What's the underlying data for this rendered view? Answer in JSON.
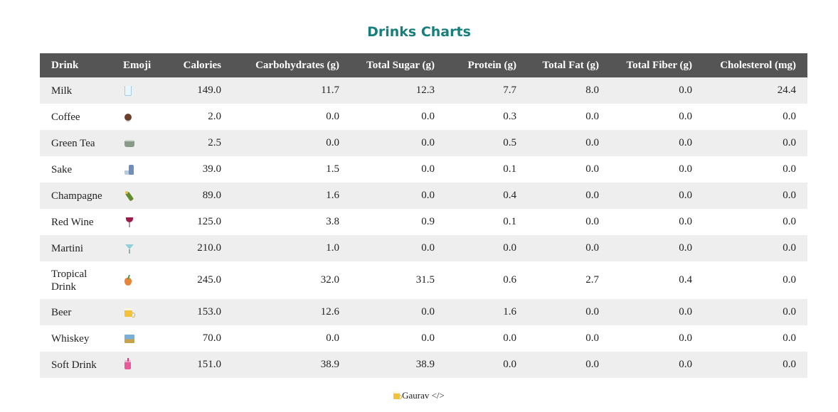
{
  "page": {
    "title": "Drinks Charts"
  },
  "table": {
    "headers": {
      "drink": "Drink",
      "emoji": "Emoji",
      "calories": "Calories",
      "carbohydrates": "Carbohydrates (g)",
      "total_sugar": "Total Sugar (g)",
      "protein": "Protein (g)",
      "total_fat": "Total Fat (g)",
      "total_fiber": "Total Fiber (g)",
      "cholesterol": "Cholesterol (mg)"
    },
    "rows": [
      {
        "drink": "Milk",
        "icon": "milk-icon",
        "calories": "149.0",
        "carbohydrates": "11.7",
        "total_sugar": "12.3",
        "protein": "7.7",
        "total_fat": "8.0",
        "total_fiber": "0.0",
        "cholesterol": "24.4"
      },
      {
        "drink": "Coffee",
        "icon": "coffee-icon",
        "calories": "2.0",
        "carbohydrates": "0.0",
        "total_sugar": "0.0",
        "protein": "0.3",
        "total_fat": "0.0",
        "total_fiber": "0.0",
        "cholesterol": "0.0"
      },
      {
        "drink": "Green Tea",
        "icon": "green-tea-icon",
        "calories": "2.5",
        "carbohydrates": "0.0",
        "total_sugar": "0.0",
        "protein": "0.5",
        "total_fat": "0.0",
        "total_fiber": "0.0",
        "cholesterol": "0.0"
      },
      {
        "drink": "Sake",
        "icon": "sake-icon",
        "calories": "39.0",
        "carbohydrates": "1.5",
        "total_sugar": "0.0",
        "protein": "0.1",
        "total_fat": "0.0",
        "total_fiber": "0.0",
        "cholesterol": "0.0"
      },
      {
        "drink": "Champagne",
        "icon": "champagne-icon",
        "calories": "89.0",
        "carbohydrates": "1.6",
        "total_sugar": "0.0",
        "protein": "0.4",
        "total_fat": "0.0",
        "total_fiber": "0.0",
        "cholesterol": "0.0"
      },
      {
        "drink": "Red Wine",
        "icon": "wine-glass-icon",
        "calories": "125.0",
        "carbohydrates": "3.8",
        "total_sugar": "0.9",
        "protein": "0.1",
        "total_fat": "0.0",
        "total_fiber": "0.0",
        "cholesterol": "0.0"
      },
      {
        "drink": "Martini",
        "icon": "cocktail-glass-icon",
        "calories": "210.0",
        "carbohydrates": "1.0",
        "total_sugar": "0.0",
        "protein": "0.0",
        "total_fat": "0.0",
        "total_fiber": "0.0",
        "cholesterol": "0.0"
      },
      {
        "drink": "Tropical Drink",
        "icon": "tropical-drink-icon",
        "calories": "245.0",
        "carbohydrates": "32.0",
        "total_sugar": "31.5",
        "protein": "0.6",
        "total_fat": "2.7",
        "total_fiber": "0.4",
        "cholesterol": "0.0"
      },
      {
        "drink": "Beer",
        "icon": "beer-mug-icon",
        "calories": "153.0",
        "carbohydrates": "12.6",
        "total_sugar": "0.0",
        "protein": "1.6",
        "total_fat": "0.0",
        "total_fiber": "0.0",
        "cholesterol": "0.0"
      },
      {
        "drink": "Whiskey",
        "icon": "whiskey-glass-icon",
        "calories": "70.0",
        "carbohydrates": "0.0",
        "total_sugar": "0.0",
        "protein": "0.0",
        "total_fat": "0.0",
        "total_fiber": "0.0",
        "cholesterol": "0.0"
      },
      {
        "drink": "Soft Drink",
        "icon": "soft-drink-cup-icon",
        "calories": "151.0",
        "carbohydrates": "38.9",
        "total_sugar": "38.9",
        "protein": "0.0",
        "total_fat": "0.0",
        "total_fiber": "0.0",
        "cholesterol": "0.0"
      }
    ]
  },
  "footer": {
    "icon": "beer-mug-icon",
    "text": "Gaurav </>"
  },
  "colors": {
    "title": "#167f7b",
    "header_bg": "#555555",
    "row_stripe": "#eeeeee"
  }
}
